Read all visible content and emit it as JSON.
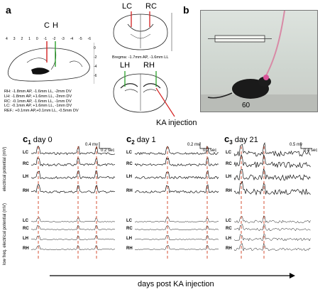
{
  "panel_a": {
    "letter": "a",
    "electrode_labels": {
      "C": "C",
      "H": "H"
    },
    "sagittal_ticks": [
      "4",
      "3",
      "2",
      "1",
      "0",
      "-1",
      "-2",
      "-3",
      "-4",
      "-5",
      "-6"
    ],
    "depth_ticks": [
      "0",
      "-2",
      "-4",
      "-6"
    ],
    "coronal_top_labels": {
      "left": "LC",
      "right": "RC"
    },
    "coronal_bottom_labels": {
      "left": "LH",
      "right": "RH"
    },
    "bregma_text": "Bregma: -1.7mm AP, -1.6mm LL",
    "ka_label": "KA injection",
    "coords": [
      "RH: -1.8mm AP, -1.6mm LL, -2mm DV",
      "LH: -1.8mm AP, +1.6mm LL, -2mm DV",
      "RC: -0.1mm AP, -1.6mm LL, -1mm DV",
      "LC: -0.1mm AP, +1.6mm LL, -1mm DV",
      "REF.: +0.1mm AP,+0.1mm LL, -0.5mm DV"
    ]
  },
  "panel_b": {
    "letter": "b",
    "number_in_photo": "60"
  },
  "panel_c": {
    "panels": [
      {
        "letter": "c",
        "index": "1",
        "title": "day 0",
        "scale_mv": "0.4 mv",
        "scale_sec": "0.2 sec"
      },
      {
        "letter": "c",
        "index": "2",
        "title": "day 1",
        "scale_mv": "0.2 mv",
        "scale_sec": "0.2 sec"
      },
      {
        "letter": "c",
        "index": "3",
        "title": "day 21",
        "scale_mv": "0.5 mv",
        "scale_sec": "0.4 sec"
      }
    ],
    "channels": [
      "LC",
      "RC",
      "LH",
      "RH"
    ],
    "ylabel_top": "electrical potential (mV)",
    "ylabel_bottom": "low freq. electrical potential (mV)",
    "xaxis_label": "days post KA injection",
    "colors": {
      "electrode_c": "#d32020",
      "electrode_h": "#2aa02a",
      "dashed": "#d04020",
      "trace": "#111111"
    }
  }
}
